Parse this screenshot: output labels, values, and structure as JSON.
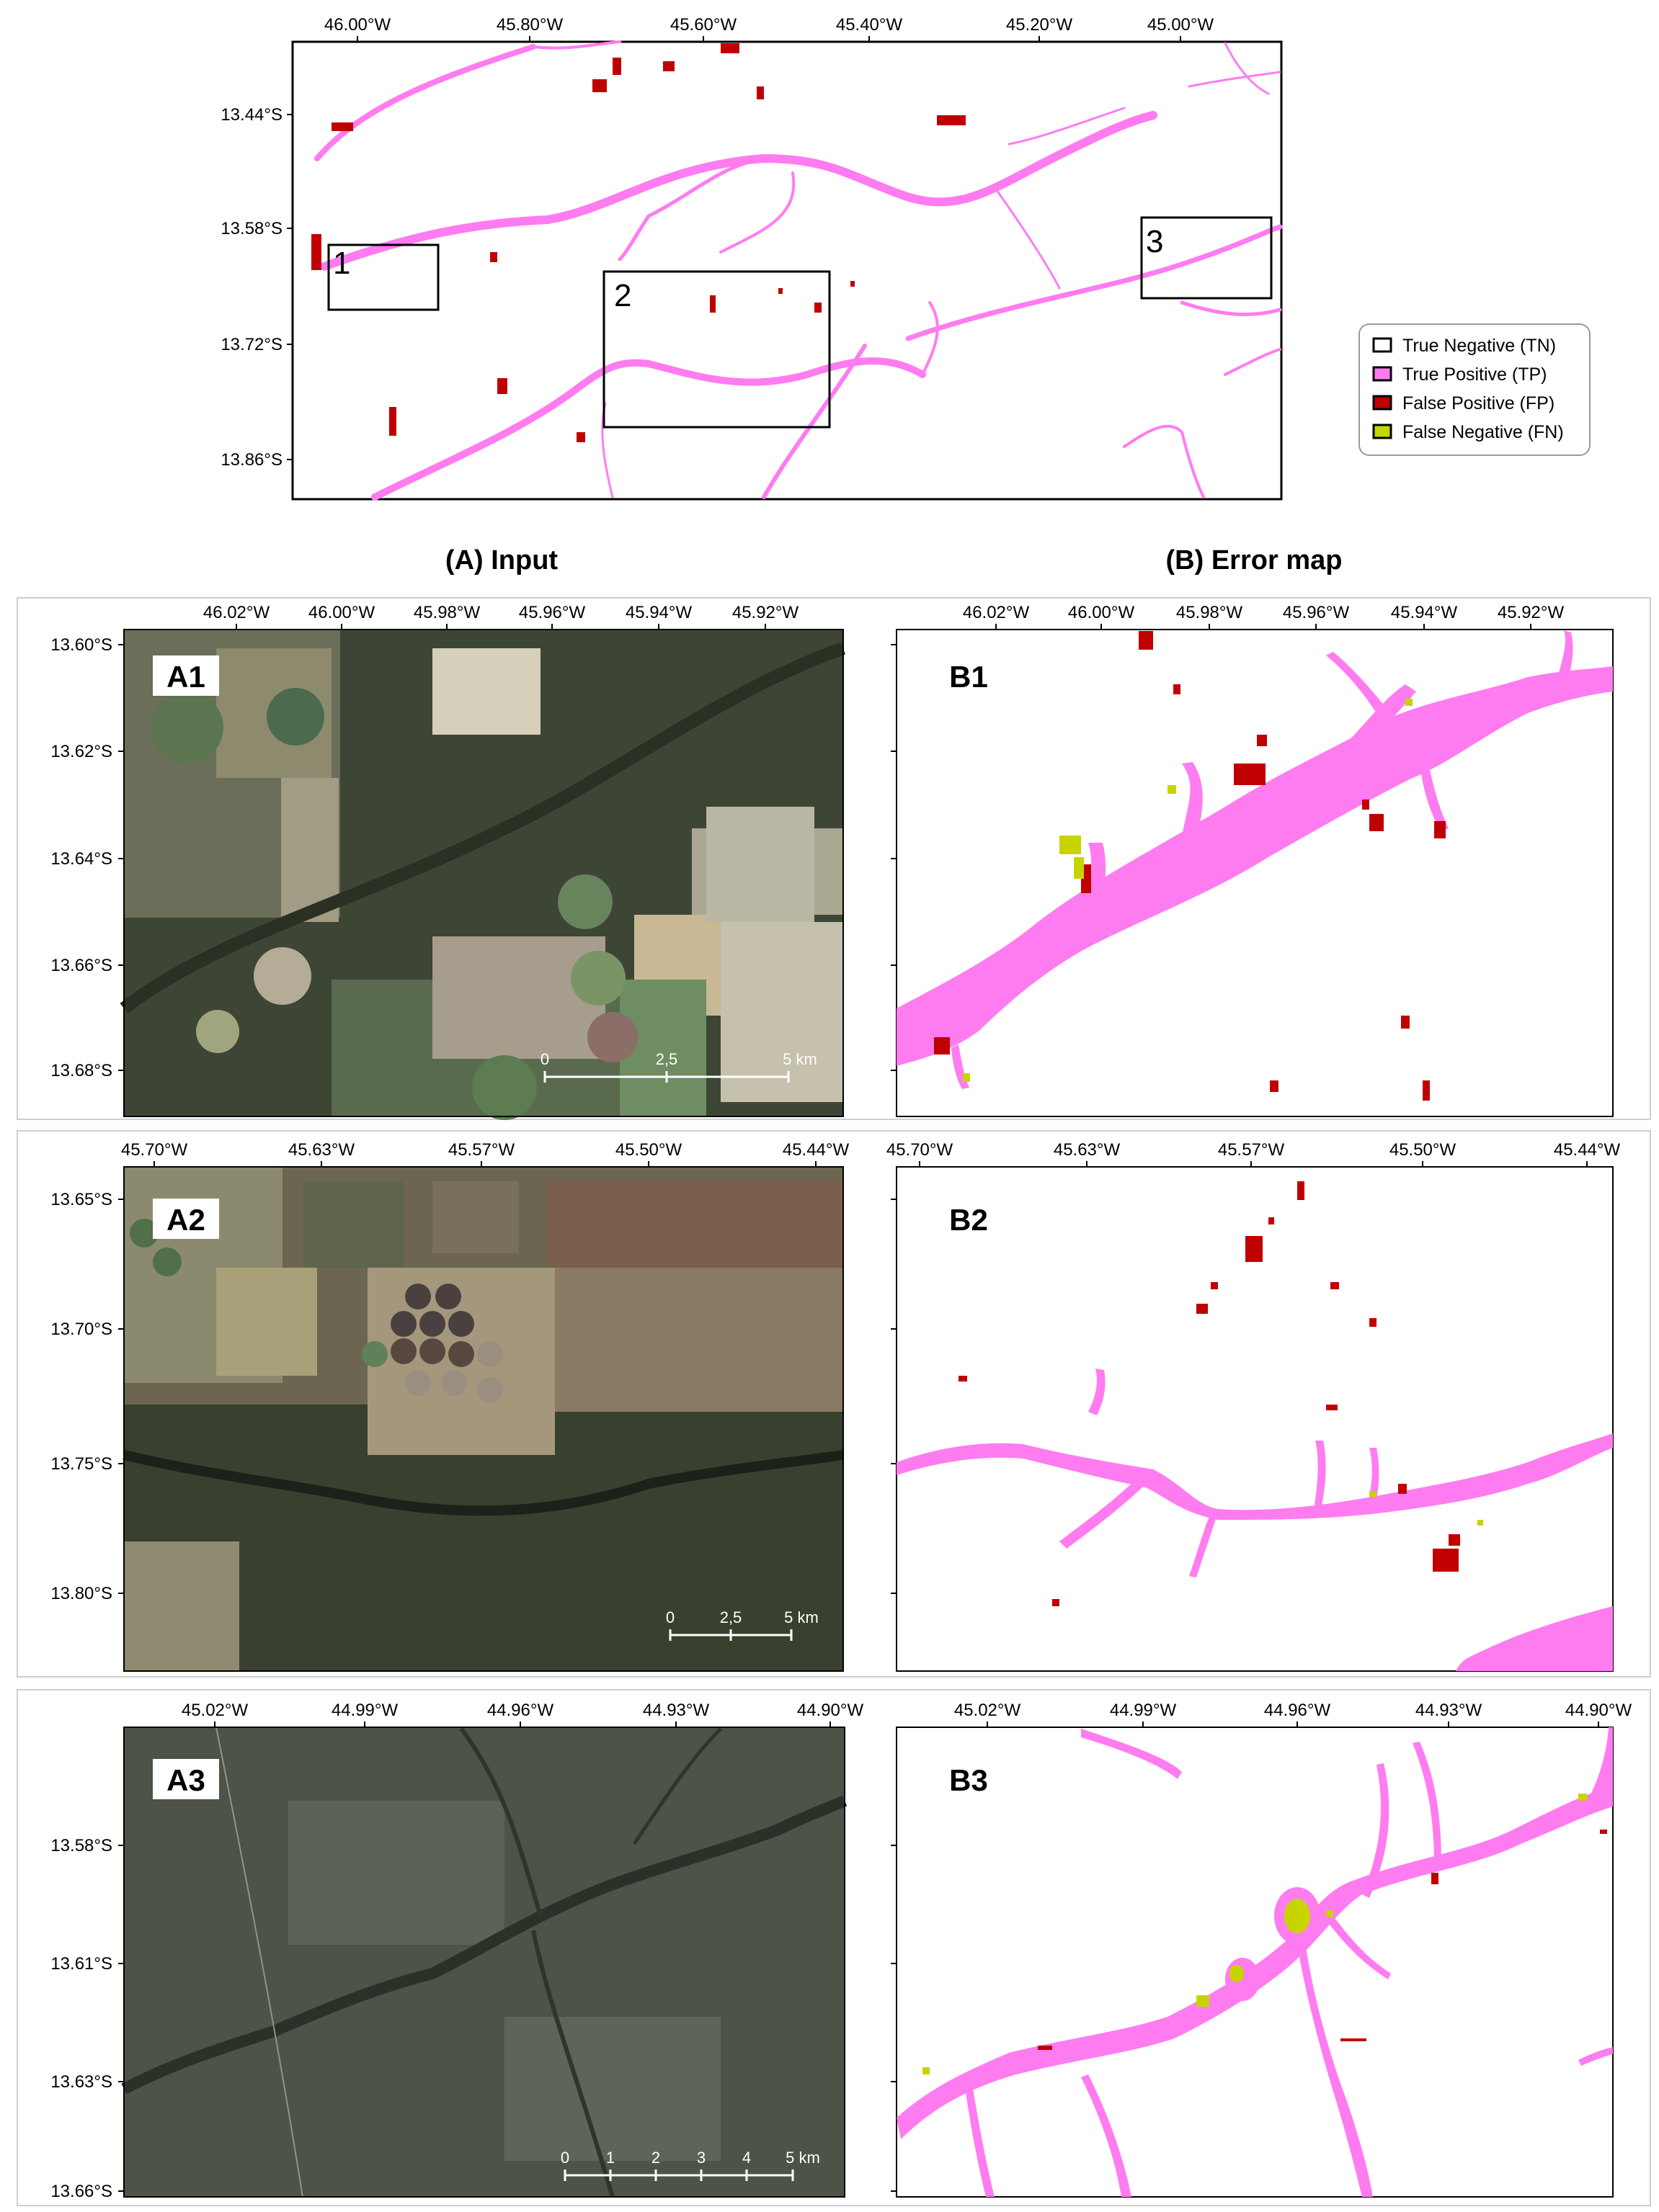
{
  "colors": {
    "true_negative": "#ffffff",
    "true_positive": "#ff7cf0",
    "false_positive": "#c00000",
    "false_negative": "#c8d400",
    "frame": "#000000"
  },
  "overview": {
    "x_ticks": [
      "46.00°W",
      "45.80°W",
      "45.60°W",
      "45.40°W",
      "45.20°W",
      "45.00°W"
    ],
    "y_ticks": [
      "13.44°S",
      "13.58°S",
      "13.72°S",
      "13.86°S"
    ],
    "box_labels": [
      "1",
      "2",
      "3"
    ]
  },
  "legend": {
    "items": [
      {
        "label": "True Negative (TN)",
        "color": "#ffffff"
      },
      {
        "label": "True Positive (TP)",
        "color": "#ff7cf0"
      },
      {
        "label": "False Positive (FP)",
        "color": "#c00000"
      },
      {
        "label": "False Negative (FN)",
        "color": "#c8d400"
      }
    ]
  },
  "headers": {
    "input": "(A) Input",
    "error": "(B) Error map"
  },
  "rows": [
    {
      "input_label": "A1",
      "error_label": "B1",
      "x_ticks": [
        "46.02°W",
        "46.00°W",
        "45.98°W",
        "45.96°W",
        "45.94°W",
        "45.92°W"
      ],
      "y_ticks": [
        "13.60°S",
        "13.62°S",
        "13.64°S",
        "13.66°S",
        "13.68°S"
      ],
      "scale": [
        "0",
        "2,5",
        "5 km"
      ]
    },
    {
      "input_label": "A2",
      "error_label": "B2",
      "x_ticks": [
        "45.70°W",
        "45.63°W",
        "45.57°W",
        "45.50°W",
        "45.44°W"
      ],
      "y_ticks": [
        "13.65°S",
        "13.70°S",
        "13.75°S",
        "13.80°S"
      ],
      "scale": [
        "0",
        "2,5",
        "5 km"
      ]
    },
    {
      "input_label": "A3",
      "error_label": "B3",
      "x_ticks": [
        "45.02°W",
        "44.99°W",
        "44.96°W",
        "44.93°W",
        "44.90°W"
      ],
      "y_ticks": [
        "13.58°S",
        "13.61°S",
        "13.63°S",
        "13.66°S"
      ],
      "scale": [
        "0",
        "1",
        "2",
        "3",
        "4",
        "5 km"
      ]
    }
  ]
}
